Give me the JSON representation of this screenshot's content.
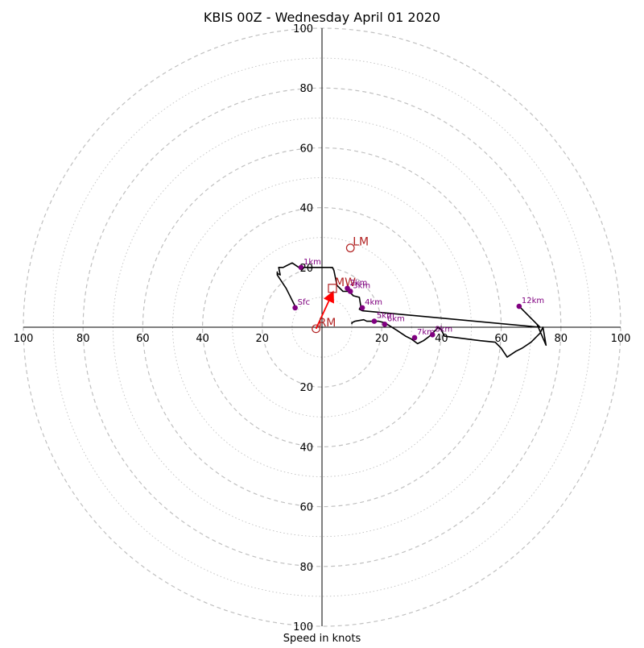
{
  "chart_data": {
    "type": "scatter",
    "title": "KBIS 00Z - Wednesday April 01 2020",
    "xlabel": "Speed in knots",
    "ylabel": "",
    "xlim": [
      -100,
      100
    ],
    "ylim": [
      -100,
      100
    ],
    "tick_labels": [
      "20",
      "40",
      "60",
      "80",
      "100"
    ],
    "ring_values": [
      10,
      20,
      30,
      40,
      50,
      60,
      70,
      80,
      90,
      100
    ],
    "grid": true,
    "hodograph": [
      [
        10,
        1
      ],
      [
        10,
        1.5
      ],
      [
        11,
        2
      ],
      [
        14,
        2.5
      ],
      [
        15,
        2
      ],
      [
        19,
        2
      ],
      [
        21,
        1.5
      ],
      [
        25,
        -1
      ],
      [
        28,
        -3
      ],
      [
        30,
        -4
      ],
      [
        32,
        -5.5
      ],
      [
        34,
        -4.5
      ],
      [
        36,
        -3
      ],
      [
        37,
        -2
      ],
      [
        38,
        -1
      ],
      [
        39,
        0
      ],
      [
        40,
        -1
      ],
      [
        41,
        -3
      ],
      [
        53,
        -4.5
      ],
      [
        58,
        -5
      ],
      [
        60,
        -7
      ],
      [
        62,
        -10
      ],
      [
        65,
        -8
      ],
      [
        67,
        -7
      ],
      [
        70,
        -5
      ],
      [
        73,
        -2
      ],
      [
        74,
        0
      ],
      [
        75,
        -6
      ],
      [
        72,
        1
      ],
      [
        66,
        7
      ],
      [
        68,
        5
      ],
      [
        70,
        3
      ],
      [
        72,
        1
      ],
      [
        73,
        0
      ],
      [
        13.5,
        5.5
      ],
      [
        12.5,
        6
      ],
      [
        13,
        7
      ],
      [
        12.5,
        10
      ],
      [
        10.5,
        10.5
      ],
      [
        9,
        12
      ],
      [
        7,
        12
      ],
      [
        5,
        14
      ],
      [
        4,
        19
      ],
      [
        3.5,
        20
      ],
      [
        -1,
        20
      ],
      [
        -6,
        20
      ],
      [
        -7,
        19.5
      ],
      [
        -10,
        21.5
      ],
      [
        -12,
        20.5
      ],
      [
        -13,
        20
      ],
      [
        -14.5,
        20
      ],
      [
        -14,
        17.5
      ],
      [
        -15,
        18
      ],
      [
        -15,
        18.5
      ],
      [
        -15,
        17.5
      ],
      [
        -12,
        13
      ],
      [
        -11,
        11
      ],
      [
        -9,
        7
      ],
      [
        -9,
        6
      ]
    ],
    "height_markers": [
      {
        "label": "Sfc",
        "u": -9,
        "v": 6.5
      },
      {
        "label": "1km",
        "u": -7,
        "v": 20
      },
      {
        "label": "2km",
        "u": 8.5,
        "v": 13
      },
      {
        "label": "3km",
        "u": 9.5,
        "v": 12
      },
      {
        "label": "4km",
        "u": 13.5,
        "v": 6.5
      },
      {
        "label": "5km",
        "u": 17.5,
        "v": 2
      },
      {
        "label": "6km",
        "u": 21,
        "v": 1
      },
      {
        "label": "7km",
        "u": 31,
        "v": -3.5
      },
      {
        "label": "8km",
        "u": 37,
        "v": -2.5
      },
      {
        "label": "12km",
        "u": 66,
        "v": 7
      }
    ],
    "storm_motion": [
      {
        "label": "LM",
        "u": 9.5,
        "v": 26.5,
        "marker": "circle"
      },
      {
        "label": "RM",
        "u": -2,
        "v": -0.5,
        "marker": "circle"
      },
      {
        "label": "MW",
        "u": 3.5,
        "v": 13,
        "marker": "square"
      }
    ],
    "colors": {
      "hodograph": "#000000",
      "markers": "#800080",
      "storm_motion": "#b22222",
      "arrow": "#ff0000",
      "grid": "#c0c0c0"
    }
  }
}
